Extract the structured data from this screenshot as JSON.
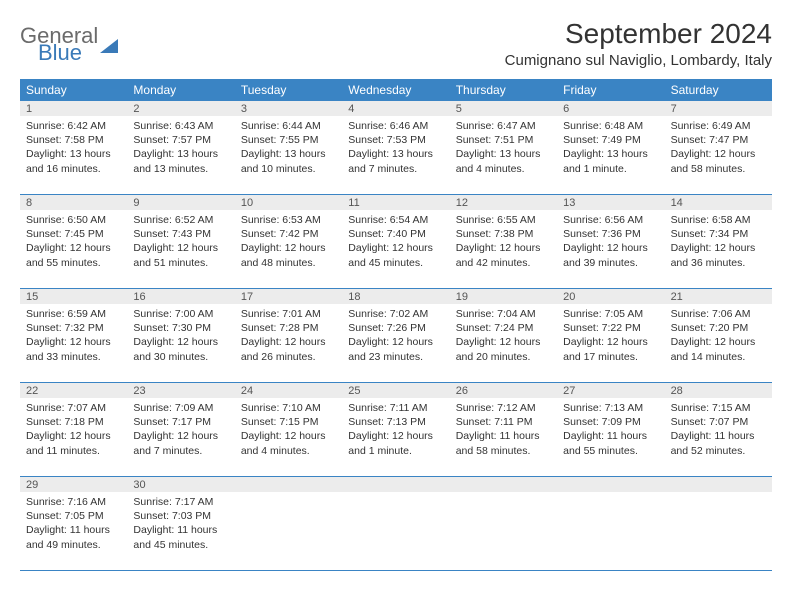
{
  "brand": {
    "line1": "General",
    "line2": "Blue"
  },
  "title": "September 2024",
  "location": "Cumignano sul Naviglio, Lombardy, Italy",
  "colors": {
    "header_bg": "#3a84c4",
    "header_text": "#ffffff",
    "daynum_bg": "#ececec",
    "border": "#3a84c4",
    "body_text": "#333333",
    "logo_gray": "#6b6b6b",
    "logo_blue": "#3a7ab8"
  },
  "day_names": [
    "Sunday",
    "Monday",
    "Tuesday",
    "Wednesday",
    "Thursday",
    "Friday",
    "Saturday"
  ],
  "weeks": [
    [
      {
        "num": "1",
        "sunrise": "Sunrise: 6:42 AM",
        "sunset": "Sunset: 7:58 PM",
        "daylight": "Daylight: 13 hours and 16 minutes."
      },
      {
        "num": "2",
        "sunrise": "Sunrise: 6:43 AM",
        "sunset": "Sunset: 7:57 PM",
        "daylight": "Daylight: 13 hours and 13 minutes."
      },
      {
        "num": "3",
        "sunrise": "Sunrise: 6:44 AM",
        "sunset": "Sunset: 7:55 PM",
        "daylight": "Daylight: 13 hours and 10 minutes."
      },
      {
        "num": "4",
        "sunrise": "Sunrise: 6:46 AM",
        "sunset": "Sunset: 7:53 PM",
        "daylight": "Daylight: 13 hours and 7 minutes."
      },
      {
        "num": "5",
        "sunrise": "Sunrise: 6:47 AM",
        "sunset": "Sunset: 7:51 PM",
        "daylight": "Daylight: 13 hours and 4 minutes."
      },
      {
        "num": "6",
        "sunrise": "Sunrise: 6:48 AM",
        "sunset": "Sunset: 7:49 PM",
        "daylight": "Daylight: 13 hours and 1 minute."
      },
      {
        "num": "7",
        "sunrise": "Sunrise: 6:49 AM",
        "sunset": "Sunset: 7:47 PM",
        "daylight": "Daylight: 12 hours and 58 minutes."
      }
    ],
    [
      {
        "num": "8",
        "sunrise": "Sunrise: 6:50 AM",
        "sunset": "Sunset: 7:45 PM",
        "daylight": "Daylight: 12 hours and 55 minutes."
      },
      {
        "num": "9",
        "sunrise": "Sunrise: 6:52 AM",
        "sunset": "Sunset: 7:43 PM",
        "daylight": "Daylight: 12 hours and 51 minutes."
      },
      {
        "num": "10",
        "sunrise": "Sunrise: 6:53 AM",
        "sunset": "Sunset: 7:42 PM",
        "daylight": "Daylight: 12 hours and 48 minutes."
      },
      {
        "num": "11",
        "sunrise": "Sunrise: 6:54 AM",
        "sunset": "Sunset: 7:40 PM",
        "daylight": "Daylight: 12 hours and 45 minutes."
      },
      {
        "num": "12",
        "sunrise": "Sunrise: 6:55 AM",
        "sunset": "Sunset: 7:38 PM",
        "daylight": "Daylight: 12 hours and 42 minutes."
      },
      {
        "num": "13",
        "sunrise": "Sunrise: 6:56 AM",
        "sunset": "Sunset: 7:36 PM",
        "daylight": "Daylight: 12 hours and 39 minutes."
      },
      {
        "num": "14",
        "sunrise": "Sunrise: 6:58 AM",
        "sunset": "Sunset: 7:34 PM",
        "daylight": "Daylight: 12 hours and 36 minutes."
      }
    ],
    [
      {
        "num": "15",
        "sunrise": "Sunrise: 6:59 AM",
        "sunset": "Sunset: 7:32 PM",
        "daylight": "Daylight: 12 hours and 33 minutes."
      },
      {
        "num": "16",
        "sunrise": "Sunrise: 7:00 AM",
        "sunset": "Sunset: 7:30 PM",
        "daylight": "Daylight: 12 hours and 30 minutes."
      },
      {
        "num": "17",
        "sunrise": "Sunrise: 7:01 AM",
        "sunset": "Sunset: 7:28 PM",
        "daylight": "Daylight: 12 hours and 26 minutes."
      },
      {
        "num": "18",
        "sunrise": "Sunrise: 7:02 AM",
        "sunset": "Sunset: 7:26 PM",
        "daylight": "Daylight: 12 hours and 23 minutes."
      },
      {
        "num": "19",
        "sunrise": "Sunrise: 7:04 AM",
        "sunset": "Sunset: 7:24 PM",
        "daylight": "Daylight: 12 hours and 20 minutes."
      },
      {
        "num": "20",
        "sunrise": "Sunrise: 7:05 AM",
        "sunset": "Sunset: 7:22 PM",
        "daylight": "Daylight: 12 hours and 17 minutes."
      },
      {
        "num": "21",
        "sunrise": "Sunrise: 7:06 AM",
        "sunset": "Sunset: 7:20 PM",
        "daylight": "Daylight: 12 hours and 14 minutes."
      }
    ],
    [
      {
        "num": "22",
        "sunrise": "Sunrise: 7:07 AM",
        "sunset": "Sunset: 7:18 PM",
        "daylight": "Daylight: 12 hours and 11 minutes."
      },
      {
        "num": "23",
        "sunrise": "Sunrise: 7:09 AM",
        "sunset": "Sunset: 7:17 PM",
        "daylight": "Daylight: 12 hours and 7 minutes."
      },
      {
        "num": "24",
        "sunrise": "Sunrise: 7:10 AM",
        "sunset": "Sunset: 7:15 PM",
        "daylight": "Daylight: 12 hours and 4 minutes."
      },
      {
        "num": "25",
        "sunrise": "Sunrise: 7:11 AM",
        "sunset": "Sunset: 7:13 PM",
        "daylight": "Daylight: 12 hours and 1 minute."
      },
      {
        "num": "26",
        "sunrise": "Sunrise: 7:12 AM",
        "sunset": "Sunset: 7:11 PM",
        "daylight": "Daylight: 11 hours and 58 minutes."
      },
      {
        "num": "27",
        "sunrise": "Sunrise: 7:13 AM",
        "sunset": "Sunset: 7:09 PM",
        "daylight": "Daylight: 11 hours and 55 minutes."
      },
      {
        "num": "28",
        "sunrise": "Sunrise: 7:15 AM",
        "sunset": "Sunset: 7:07 PM",
        "daylight": "Daylight: 11 hours and 52 minutes."
      }
    ],
    [
      {
        "num": "29",
        "sunrise": "Sunrise: 7:16 AM",
        "sunset": "Sunset: 7:05 PM",
        "daylight": "Daylight: 11 hours and 49 minutes."
      },
      {
        "num": "30",
        "sunrise": "Sunrise: 7:17 AM",
        "sunset": "Sunset: 7:03 PM",
        "daylight": "Daylight: 11 hours and 45 minutes."
      },
      {
        "num": "",
        "sunrise": "",
        "sunset": "",
        "daylight": ""
      },
      {
        "num": "",
        "sunrise": "",
        "sunset": "",
        "daylight": ""
      },
      {
        "num": "",
        "sunrise": "",
        "sunset": "",
        "daylight": ""
      },
      {
        "num": "",
        "sunrise": "",
        "sunset": "",
        "daylight": ""
      },
      {
        "num": "",
        "sunrise": "",
        "sunset": "",
        "daylight": ""
      }
    ]
  ]
}
